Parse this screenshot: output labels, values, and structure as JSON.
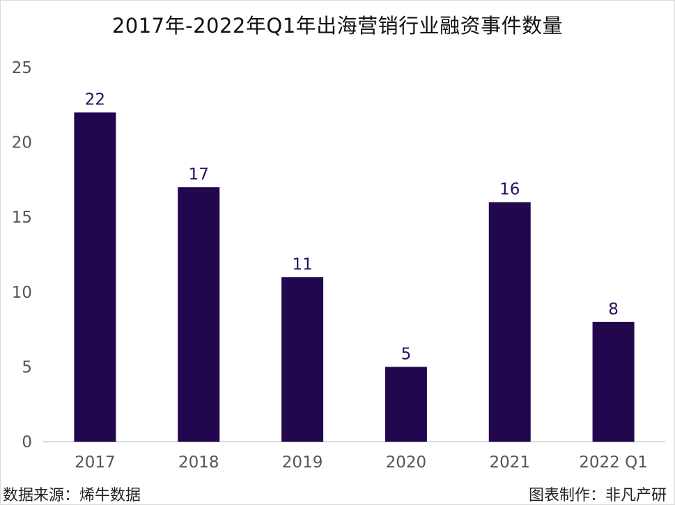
{
  "chart_data": {
    "type": "bar",
    "title": "2017年-2022年Q1年出海营销行业融资事件数量",
    "categories": [
      "2017",
      "2018",
      "2019",
      "2020",
      "2021",
      "2022 Q1"
    ],
    "values": [
      22,
      17,
      11,
      5,
      16,
      8
    ],
    "ylim": [
      0,
      25
    ],
    "yticks": [
      0,
      5,
      10,
      15,
      20,
      25
    ],
    "xlabel": "",
    "ylabel": "",
    "grid": false,
    "bar_color": "#22074f"
  },
  "footer": {
    "source": "数据来源：烯牛数据",
    "credit": "图表制作：非凡产研"
  }
}
